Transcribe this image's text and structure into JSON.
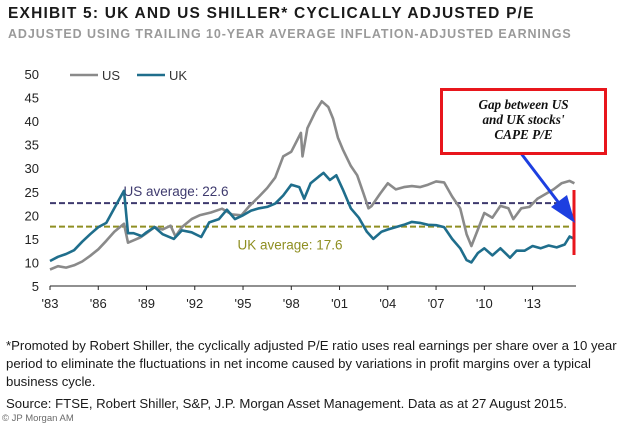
{
  "title": "EXHIBIT 5: UK AND US SHILLER* CYCLICALLY ADJUSTED P/E",
  "subtitle": "ADJUSTED USING TRAILING 10-YEAR AVERAGE INFLATION-ADJUSTED EARNINGS",
  "footnote": "*Promoted by Robert Shiller, the cyclically adjusted P/E ratio uses real earnings per share over a 10 year period to eliminate the fluctuations in net income caused by variations in profit margins over a typical business cycle.",
  "source": "Source: FTSE, Robert Shiller, S&P, J.P. Morgan Asset Management. Data as at 27 August 2015.",
  "watermark": "© JP Morgan AM",
  "callout": {
    "line1": "Gap between US",
    "line2": "and UK stocks'",
    "line3": "CAPE P/E"
  },
  "chart_data": {
    "type": "line",
    "title": "EXHIBIT 5: UK AND US SHILLER* CYCLICALLY ADJUSTED P/E",
    "subtitle": "ADJUSTED USING TRAILING 10-YEAR AVERAGE INFLATION-ADJUSTED EARNINGS",
    "xlabel": "",
    "ylabel": "",
    "xlim": [
      1983,
      2015.7
    ],
    "ylim": [
      5,
      50
    ],
    "yticks": [
      5,
      10,
      15,
      20,
      25,
      30,
      35,
      40,
      45,
      50
    ],
    "xticks": [
      {
        "label": "'83",
        "value": 1983
      },
      {
        "label": "'86",
        "value": 1986
      },
      {
        "label": "'89",
        "value": 1989
      },
      {
        "label": "'92",
        "value": 1992
      },
      {
        "label": "'95",
        "value": 1995
      },
      {
        "label": "'98",
        "value": 1998
      },
      {
        "label": "'01",
        "value": 2001
      },
      {
        "label": "'04",
        "value": 2004
      },
      {
        "label": "'07",
        "value": 2007
      },
      {
        "label": "'10",
        "value": 2010
      },
      {
        "label": "'13",
        "value": 2013
      }
    ],
    "grid": false,
    "legend": "top-left",
    "series": [
      {
        "name": "US",
        "color": "#8a8a8a",
        "points": [
          [
            1983.0,
            8.5
          ],
          [
            1983.5,
            9.2
          ],
          [
            1984.0,
            8.9
          ],
          [
            1984.5,
            9.4
          ],
          [
            1985.0,
            10.2
          ],
          [
            1985.5,
            11.4
          ],
          [
            1986.0,
            12.8
          ],
          [
            1986.5,
            14.6
          ],
          [
            1987.0,
            16.5
          ],
          [
            1987.6,
            18.2
          ],
          [
            1987.85,
            14.2
          ],
          [
            1988.2,
            14.7
          ],
          [
            1988.6,
            15.3
          ],
          [
            1989.0,
            16.2
          ],
          [
            1989.5,
            17.5
          ],
          [
            1990.0,
            17.0
          ],
          [
            1990.5,
            17.8
          ],
          [
            1990.8,
            15.5
          ],
          [
            1991.2,
            17.5
          ],
          [
            1991.8,
            19.2
          ],
          [
            1992.3,
            20.0
          ],
          [
            1993.0,
            20.6
          ],
          [
            1993.7,
            21.4
          ],
          [
            1994.3,
            20.2
          ],
          [
            1994.9,
            20.0
          ],
          [
            1995.4,
            22.0
          ],
          [
            1996.0,
            24.0
          ],
          [
            1996.5,
            25.8
          ],
          [
            1997.0,
            28.0
          ],
          [
            1997.5,
            32.5
          ],
          [
            1998.0,
            33.5
          ],
          [
            1998.6,
            37.5
          ],
          [
            1998.7,
            32.5
          ],
          [
            1999.0,
            38.5
          ],
          [
            1999.5,
            42.0
          ],
          [
            1999.9,
            44.2
          ],
          [
            2000.3,
            43.0
          ],
          [
            2000.6,
            40.5
          ],
          [
            2000.9,
            36.5
          ],
          [
            2001.2,
            34.0
          ],
          [
            2001.7,
            30.5
          ],
          [
            2002.1,
            28.5
          ],
          [
            2002.5,
            24.5
          ],
          [
            2002.8,
            21.5
          ],
          [
            2003.0,
            22.0
          ],
          [
            2003.5,
            24.5
          ],
          [
            2004.0,
            26.8
          ],
          [
            2004.5,
            25.5
          ],
          [
            2005.0,
            26.0
          ],
          [
            2005.5,
            26.2
          ],
          [
            2006.0,
            26.0
          ],
          [
            2006.5,
            26.5
          ],
          [
            2007.0,
            27.2
          ],
          [
            2007.5,
            27.0
          ],
          [
            2008.0,
            24.0
          ],
          [
            2008.5,
            21.5
          ],
          [
            2008.9,
            16.0
          ],
          [
            2009.2,
            13.5
          ],
          [
            2009.6,
            17.0
          ],
          [
            2010.0,
            20.5
          ],
          [
            2010.5,
            19.5
          ],
          [
            2011.0,
            22.0
          ],
          [
            2011.5,
            21.5
          ],
          [
            2011.8,
            19.2
          ],
          [
            2012.3,
            21.5
          ],
          [
            2012.8,
            21.8
          ],
          [
            2013.3,
            23.5
          ],
          [
            2013.8,
            24.5
          ],
          [
            2014.3,
            25.5
          ],
          [
            2014.8,
            26.8
          ],
          [
            2015.3,
            27.3
          ],
          [
            2015.6,
            26.8
          ]
        ]
      },
      {
        "name": "UK",
        "color": "#1f6e8c",
        "points": [
          [
            1983.0,
            10.3
          ],
          [
            1983.5,
            11.2
          ],
          [
            1984.0,
            11.8
          ],
          [
            1984.5,
            12.6
          ],
          [
            1985.0,
            14.4
          ],
          [
            1985.5,
            16.0
          ],
          [
            1986.0,
            17.5
          ],
          [
            1986.5,
            18.4
          ],
          [
            1987.0,
            21.5
          ],
          [
            1987.4,
            24.0
          ],
          [
            1987.6,
            25.2
          ],
          [
            1987.85,
            16.2
          ],
          [
            1988.2,
            16.2
          ],
          [
            1988.7,
            15.6
          ],
          [
            1989.0,
            16.4
          ],
          [
            1989.5,
            17.5
          ],
          [
            1990.0,
            16.0
          ],
          [
            1990.7,
            15.0
          ],
          [
            1991.2,
            16.8
          ],
          [
            1991.8,
            16.4
          ],
          [
            1992.4,
            15.4
          ],
          [
            1992.9,
            18.5
          ],
          [
            1993.5,
            19.2
          ],
          [
            1994.0,
            21.2
          ],
          [
            1994.5,
            19.2
          ],
          [
            1995.0,
            20.0
          ],
          [
            1995.5,
            21.0
          ],
          [
            1996.0,
            21.5
          ],
          [
            1996.5,
            21.8
          ],
          [
            1997.0,
            22.5
          ],
          [
            1997.5,
            24.2
          ],
          [
            1998.0,
            26.5
          ],
          [
            1998.5,
            26.0
          ],
          [
            1998.8,
            23.5
          ],
          [
            1999.2,
            26.8
          ],
          [
            1999.7,
            28.2
          ],
          [
            2000.0,
            29.0
          ],
          [
            2000.4,
            27.5
          ],
          [
            2000.8,
            28.5
          ],
          [
            2001.2,
            25.5
          ],
          [
            2001.7,
            21.5
          ],
          [
            2002.2,
            19.5
          ],
          [
            2002.7,
            16.5
          ],
          [
            2003.1,
            15.0
          ],
          [
            2003.6,
            16.5
          ],
          [
            2004.0,
            17.0
          ],
          [
            2004.5,
            17.5
          ],
          [
            2005.0,
            18.0
          ],
          [
            2005.5,
            18.6
          ],
          [
            2006.0,
            18.4
          ],
          [
            2006.5,
            18.0
          ],
          [
            2007.0,
            17.9
          ],
          [
            2007.5,
            17.5
          ],
          [
            2008.0,
            15.0
          ],
          [
            2008.5,
            13.0
          ],
          [
            2008.9,
            10.5
          ],
          [
            2009.2,
            10.0
          ],
          [
            2009.6,
            12.0
          ],
          [
            2010.0,
            13.0
          ],
          [
            2010.5,
            11.5
          ],
          [
            2011.0,
            13.0
          ],
          [
            2011.6,
            11.0
          ],
          [
            2012.0,
            12.5
          ],
          [
            2012.5,
            12.5
          ],
          [
            2013.0,
            13.5
          ],
          [
            2013.5,
            13.0
          ],
          [
            2014.0,
            13.6
          ],
          [
            2014.5,
            13.2
          ],
          [
            2015.0,
            13.8
          ],
          [
            2015.3,
            15.5
          ],
          [
            2015.6,
            15.0
          ]
        ]
      }
    ],
    "reference_lines": [
      {
        "label": "US average: 22.6",
        "value": 22.6,
        "color": "#3e3a6e"
      },
      {
        "label": "UK average: 17.6",
        "value": 17.6,
        "color": "#8f8f22"
      }
    ],
    "annotation": "Gap between US and UK stocks' CAPE P/E"
  }
}
